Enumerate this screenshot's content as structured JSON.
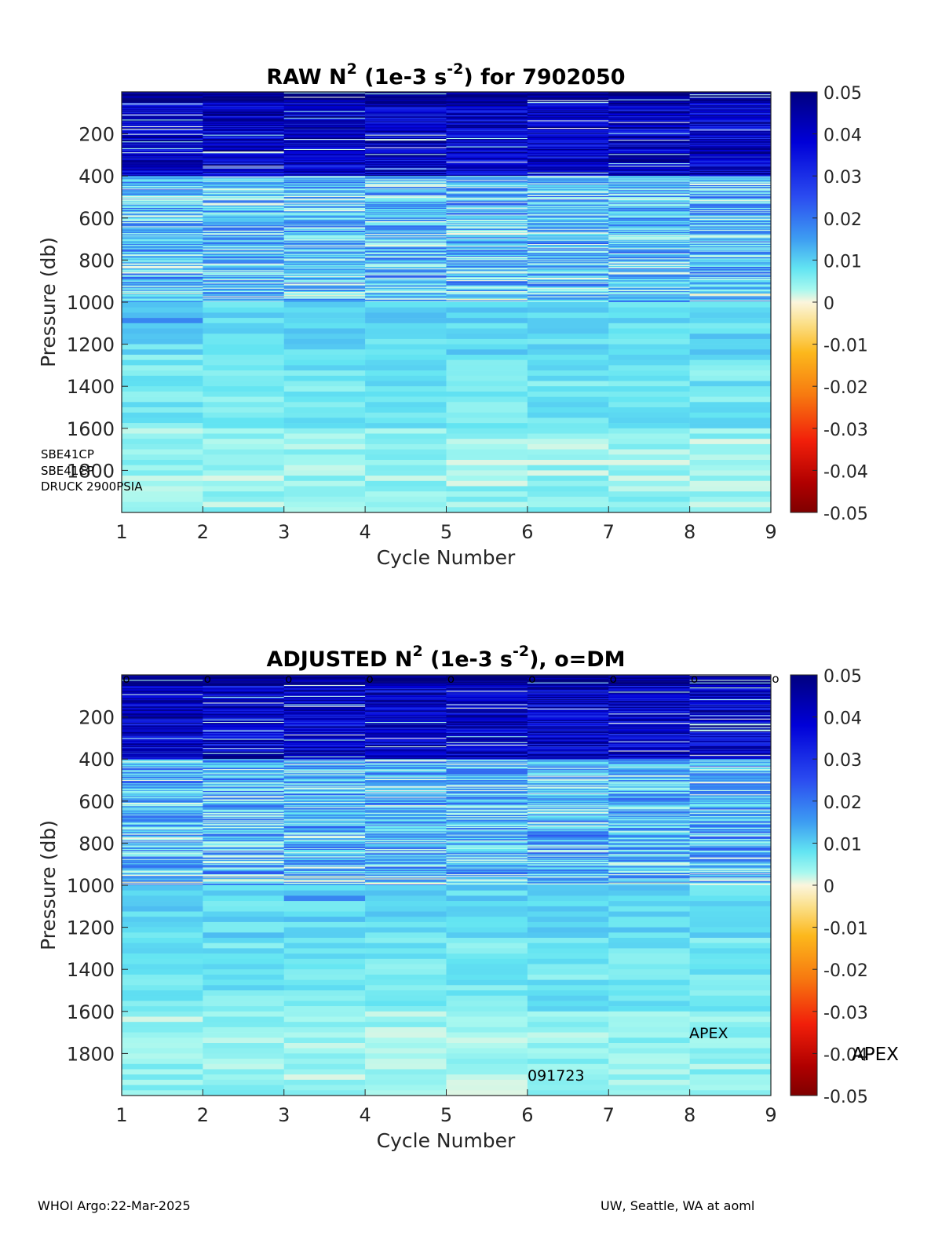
{
  "footer": {
    "left": "WHOI Argo:22-Mar-2025",
    "right": "UW, Seattle, WA at aoml"
  },
  "colorbar": {
    "ticks": [
      "0.05",
      "0.04",
      "0.03",
      "0.02",
      "0.01",
      "0",
      "-0.01",
      "-0.02",
      "-0.03",
      "-0.04",
      "-0.05"
    ],
    "clim": [
      -0.05,
      0.05
    ],
    "colormap": "blue-cyan-white-yellow-red (jet-like, zero centered at cream)"
  },
  "chart_data": [
    {
      "type": "heatmap",
      "title": {
        "prefix": "RAW N",
        "sup1": "2",
        "mid": " (1e-3 s",
        "sup2": "-2",
        "suffix": ") for 7902050"
      },
      "xlabel": "Cycle Number",
      "ylabel": "Pressure (db)",
      "xticks": [
        "1",
        "2",
        "3",
        "4",
        "5",
        "6",
        "7",
        "8",
        "9"
      ],
      "yticks": [
        "200",
        "400",
        "600",
        "800",
        "1000",
        "1200",
        "1400",
        "1600",
        "1800"
      ],
      "xlim": [
        1,
        9
      ],
      "ylim": [
        2000,
        0
      ],
      "cycles": [
        1,
        2,
        3,
        4,
        5,
        6,
        7,
        8
      ],
      "notes": [
        "SBE41CP",
        "SBE41CP",
        "DRUCK 2900PSIA"
      ],
      "profile_summary": [
        {
          "pressure_range": [
            0,
            50
          ],
          "n2_approx": 0.05
        },
        {
          "pressure_range": [
            50,
            400
          ],
          "n2_approx": 0.04
        },
        {
          "pressure_range": [
            400,
            950
          ],
          "n2_approx": 0.012
        },
        {
          "pressure_range": [
            950,
            1250
          ],
          "n2_approx": 0.009
        },
        {
          "pressure_range": [
            1250,
            1600
          ],
          "n2_approx": 0.007
        },
        {
          "pressure_range": [
            1600,
            2000
          ],
          "n2_approx": 0.004
        }
      ]
    },
    {
      "type": "heatmap",
      "title": {
        "prefix": "ADJUSTED N",
        "sup1": "2",
        "mid": " (1e-3 s",
        "sup2": "-2",
        "suffix": "), o=DM"
      },
      "xlabel": "Cycle Number",
      "ylabel": "Pressure (db)",
      "xticks": [
        "1",
        "2",
        "3",
        "4",
        "5",
        "6",
        "7",
        "8",
        "9"
      ],
      "yticks": [
        "200",
        "400",
        "600",
        "800",
        "1000",
        "1200",
        "1400",
        "1600",
        "1800"
      ],
      "xlim": [
        1,
        9
      ],
      "ylim": [
        2000,
        0
      ],
      "cycles": [
        1,
        2,
        3,
        4,
        5,
        6,
        7,
        8
      ],
      "dm_marker": "o",
      "dm_cycles": [
        1,
        2,
        3,
        4,
        5,
        6,
        7,
        8,
        9
      ],
      "notes": [
        "APEX",
        "091723"
      ],
      "colorbar_overlay_label": "APEX",
      "profile_summary": [
        {
          "pressure_range": [
            0,
            50
          ],
          "n2_approx": 0.05
        },
        {
          "pressure_range": [
            50,
            400
          ],
          "n2_approx": 0.04
        },
        {
          "pressure_range": [
            400,
            950
          ],
          "n2_approx": 0.012
        },
        {
          "pressure_range": [
            950,
            1250
          ],
          "n2_approx": 0.009
        },
        {
          "pressure_range": [
            1250,
            1600
          ],
          "n2_approx": 0.007
        },
        {
          "pressure_range": [
            1600,
            2000
          ],
          "n2_approx": 0.004
        }
      ]
    }
  ]
}
